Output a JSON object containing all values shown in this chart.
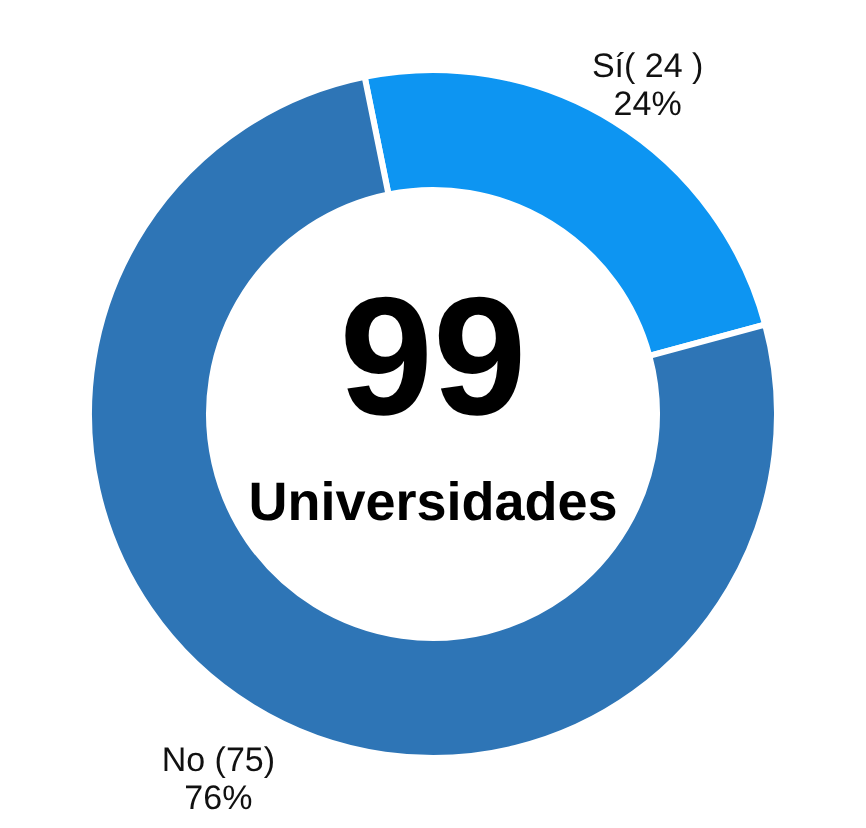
{
  "chart_data": {
    "type": "donut",
    "categories": [
      "Sí( 24 )",
      "No (75)"
    ],
    "values": [
      24,
      76
    ],
    "colors": [
      "#0d95f2",
      "#2e75b6"
    ],
    "value_labels": [
      "24%",
      "76%"
    ],
    "annotations": [
      "99",
      "Universidades"
    ]
  }
}
